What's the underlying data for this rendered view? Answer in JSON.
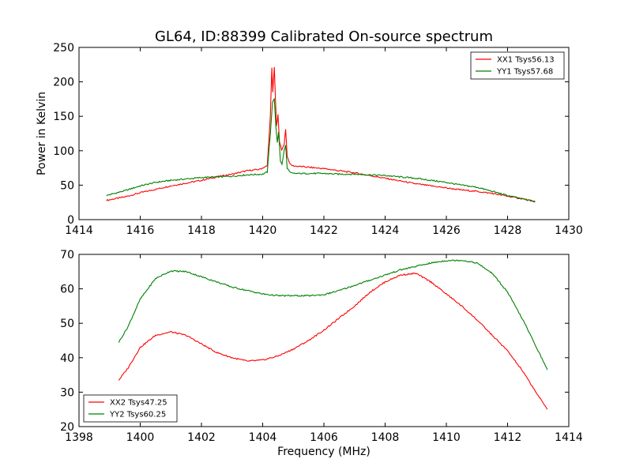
{
  "chart_data": [
    {
      "type": "line",
      "title": "GL64, ID:88399 Calibrated On-source spectrum",
      "xlabel": "",
      "ylabel": "Power in Kelvin",
      "xlim": [
        1414,
        1430
      ],
      "ylim": [
        0,
        250
      ],
      "xticks": [
        "1414",
        "1416",
        "1418",
        "1420",
        "1422",
        "1424",
        "1426",
        "1428",
        "1430"
      ],
      "yticks": [
        "0",
        "50",
        "100",
        "150",
        "200",
        "250"
      ],
      "grid": false,
      "legend_position": "top-right",
      "series": [
        {
          "name": "XX1 Tsys56.13",
          "color": "#ff0000",
          "points": [
            [
              1414.9,
              28
            ],
            [
              1415.5,
              33
            ],
            [
              1416,
              39
            ],
            [
              1416.5,
              44
            ],
            [
              1417,
              49
            ],
            [
              1417.5,
              53
            ],
            [
              1418,
              57
            ],
            [
              1418.5,
              62
            ],
            [
              1419,
              66
            ],
            [
              1419.5,
              71
            ],
            [
              1419.9,
              73
            ],
            [
              1420.15,
              78
            ],
            [
              1420.25,
              150
            ],
            [
              1420.3,
              220
            ],
            [
              1420.33,
              185
            ],
            [
              1420.38,
              222
            ],
            [
              1420.45,
              135
            ],
            [
              1420.5,
              152
            ],
            [
              1420.55,
              112
            ],
            [
              1420.62,
              102
            ],
            [
              1420.7,
              108
            ],
            [
              1420.75,
              132
            ],
            [
              1420.8,
              92
            ],
            [
              1420.9,
              80
            ],
            [
              1421.0,
              78
            ],
            [
              1421.5,
              76
            ],
            [
              1422,
              74
            ],
            [
              1422.5,
              71
            ],
            [
              1423,
              68
            ],
            [
              1423.5,
              64
            ],
            [
              1424,
              60
            ],
            [
              1424.5,
              56
            ],
            [
              1425,
              52
            ],
            [
              1425.5,
              49
            ],
            [
              1426,
              46
            ],
            [
              1426.5,
              43
            ],
            [
              1427,
              41
            ],
            [
              1427.5,
              38
            ],
            [
              1428,
              34
            ],
            [
              1428.5,
              30
            ],
            [
              1428.9,
              26
            ]
          ]
        },
        {
          "name": "YY1 Tsys57.68",
          "color": "#008000",
          "points": [
            [
              1414.9,
              35
            ],
            [
              1415.5,
              42
            ],
            [
              1416,
              49
            ],
            [
              1416.5,
              54
            ],
            [
              1417,
              57
            ],
            [
              1417.5,
              59
            ],
            [
              1418,
              61
            ],
            [
              1418.5,
              62
            ],
            [
              1419,
              63
            ],
            [
              1419.5,
              65
            ],
            [
              1420.0,
              66
            ],
            [
              1420.15,
              69
            ],
            [
              1420.25,
              125
            ],
            [
              1420.32,
              170
            ],
            [
              1420.38,
              176
            ],
            [
              1420.43,
              135
            ],
            [
              1420.48,
              112
            ],
            [
              1420.52,
              128
            ],
            [
              1420.58,
              85
            ],
            [
              1420.63,
              80
            ],
            [
              1420.7,
              100
            ],
            [
              1420.75,
              108
            ],
            [
              1420.8,
              75
            ],
            [
              1420.9,
              68
            ],
            [
              1421.0,
              67
            ],
            [
              1421.5,
              67
            ],
            [
              1422,
              67
            ],
            [
              1422.5,
              66
            ],
            [
              1423,
              66
            ],
            [
              1423.5,
              65
            ],
            [
              1424,
              64
            ],
            [
              1424.5,
              62
            ],
            [
              1425,
              60
            ],
            [
              1425.5,
              57
            ],
            [
              1426,
              54
            ],
            [
              1426.5,
              50
            ],
            [
              1427,
              47
            ],
            [
              1427.5,
              41
            ],
            [
              1428,
              35
            ],
            [
              1428.5,
              30
            ],
            [
              1428.9,
              26
            ]
          ]
        }
      ]
    },
    {
      "type": "line",
      "title": "",
      "xlabel": "Frequency (MHz)",
      "ylabel": "",
      "xlim": [
        1398,
        1414
      ],
      "ylim": [
        20,
        70
      ],
      "xticks": [
        "1398",
        "1400",
        "1402",
        "1404",
        "1406",
        "1408",
        "1410",
        "1412",
        "1414"
      ],
      "yticks": [
        "20",
        "30",
        "40",
        "50",
        "60",
        "70"
      ],
      "grid": false,
      "legend_position": "bottom-left",
      "series": [
        {
          "name": "XX2 Tsys47.25",
          "color": "#ff0000",
          "points": [
            [
              1399.3,
              33.5
            ],
            [
              1399.6,
              37
            ],
            [
              1400,
              43
            ],
            [
              1400.5,
              46.5
            ],
            [
              1401,
              47.5
            ],
            [
              1401.5,
              46.5
            ],
            [
              1402,
              44
            ],
            [
              1402.5,
              41.5
            ],
            [
              1403,
              40
            ],
            [
              1403.5,
              39
            ],
            [
              1404,
              39.3
            ],
            [
              1404.5,
              40.5
            ],
            [
              1405,
              42.5
            ],
            [
              1405.5,
              45
            ],
            [
              1406,
              48
            ],
            [
              1406.5,
              51.5
            ],
            [
              1407,
              55
            ],
            [
              1407.5,
              59
            ],
            [
              1408,
              62
            ],
            [
              1408.5,
              64
            ],
            [
              1409,
              64.5
            ],
            [
              1409.5,
              62
            ],
            [
              1410,
              58.5
            ],
            [
              1410.5,
              55
            ],
            [
              1411,
              51
            ],
            [
              1411.5,
              46.5
            ],
            [
              1412,
              42
            ],
            [
              1412.5,
              36
            ],
            [
              1413,
              29
            ],
            [
              1413.3,
              25
            ]
          ]
        },
        {
          "name": "YY2 Tsys60.25",
          "color": "#008000",
          "points": [
            [
              1399.3,
              44.5
            ],
            [
              1399.6,
              49
            ],
            [
              1400,
              57
            ],
            [
              1400.5,
              63
            ],
            [
              1401,
              65.2
            ],
            [
              1401.5,
              65
            ],
            [
              1402,
              63.5
            ],
            [
              1402.5,
              62
            ],
            [
              1403,
              60.5
            ],
            [
              1403.5,
              59.5
            ],
            [
              1404,
              58.5
            ],
            [
              1404.5,
              58
            ],
            [
              1405,
              58
            ],
            [
              1405.5,
              58
            ],
            [
              1406,
              58.3
            ],
            [
              1406.5,
              59.5
            ],
            [
              1407,
              61
            ],
            [
              1407.5,
              62.5
            ],
            [
              1408,
              64
            ],
            [
              1408.5,
              65.5
            ],
            [
              1409,
              66.5
            ],
            [
              1409.5,
              67.5
            ],
            [
              1410,
              68.2
            ],
            [
              1410.5,
              68.3
            ],
            [
              1411,
              67.5
            ],
            [
              1411.5,
              64.5
            ],
            [
              1412,
              59
            ],
            [
              1412.5,
              51
            ],
            [
              1413,
              42
            ],
            [
              1413.3,
              36.5
            ]
          ]
        }
      ]
    }
  ]
}
